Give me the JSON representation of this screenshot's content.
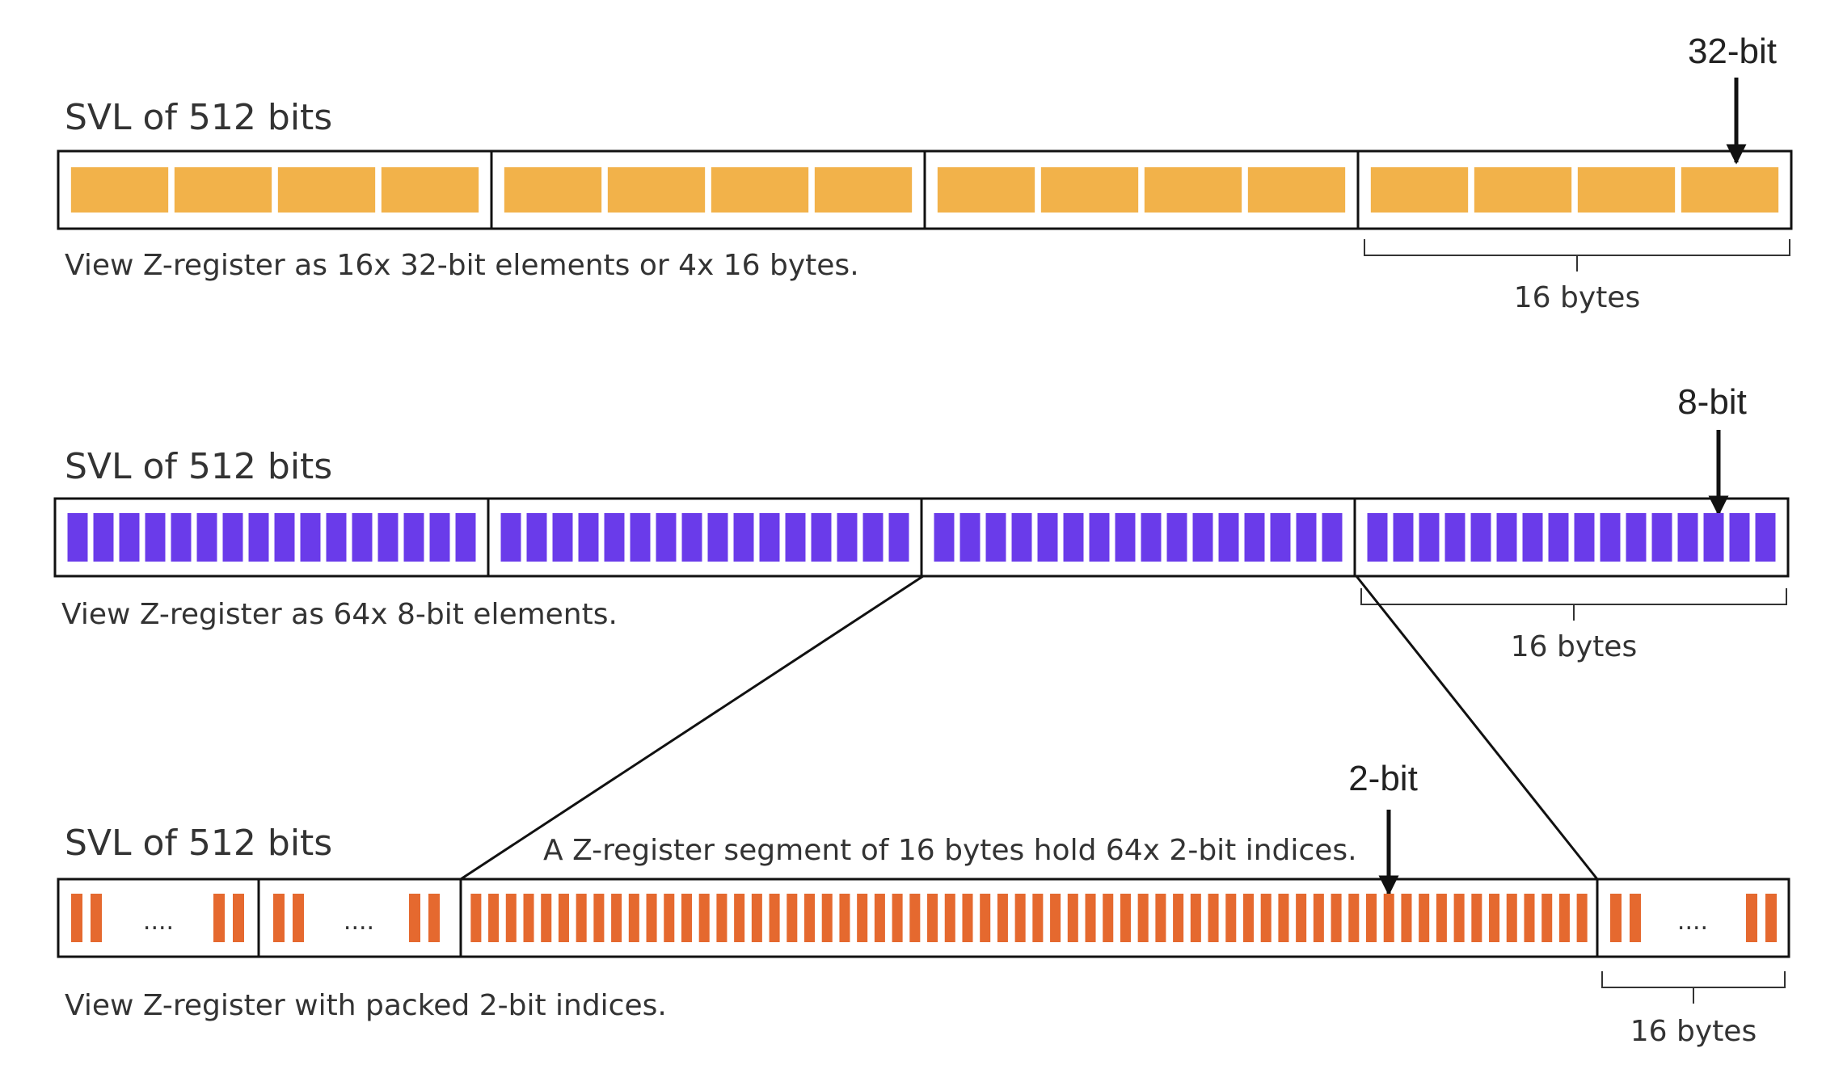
{
  "colors": {
    "orange_32bit": "#F2B24A",
    "purple_8bit": "#6A3BEA",
    "orange_2bit": "#E5692F",
    "outline": "#111111"
  },
  "rows": [
    {
      "svl_label": "SVL of 512 bits",
      "element_label": "32-bit",
      "caption": "View Z-register as 16x 32-bit elements or 4x 16 bytes.",
      "bytes_label": "16 bytes",
      "element_count": 16,
      "segments": 4
    },
    {
      "svl_label": "SVL of 512 bits",
      "element_label": "8-bit",
      "caption": "View Z-register as 64x 8-bit elements.",
      "bytes_label": "16 bytes",
      "element_count": 64,
      "segments": 4
    },
    {
      "svl_label": "SVL of 512 bits",
      "element_label": "2-bit",
      "segment_note": "A Z-register segment of 16 bytes hold 64x 2-bit indices.",
      "caption": "View Z-register with packed 2-bit indices.",
      "bytes_label": "16 bytes",
      "ellipsis": "....",
      "expanded_element_count": 64
    }
  ]
}
